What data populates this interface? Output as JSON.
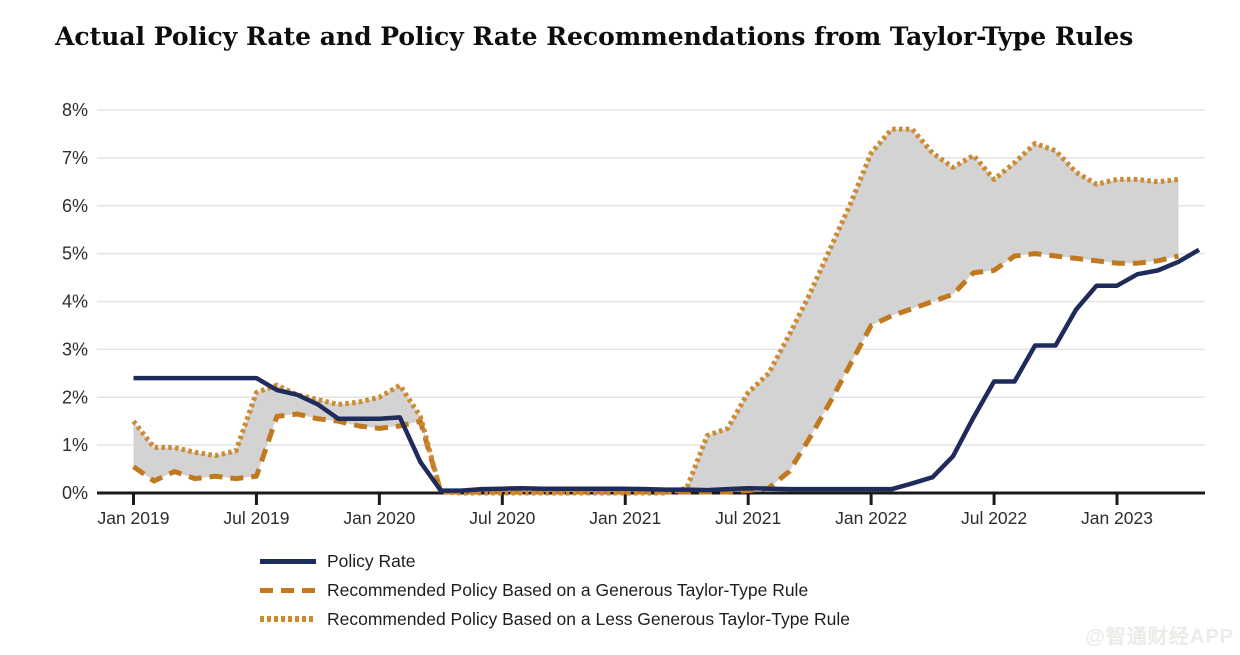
{
  "page": {
    "watermark": "@智通财经APP"
  },
  "chart_data": {
    "type": "line",
    "title": "Actual Policy Rate and Policy Rate Recommendations from Taylor-Type Rules",
    "x_unit": "month",
    "months": [
      "Jan 2019",
      "Feb 2019",
      "Mar 2019",
      "Apr 2019",
      "May 2019",
      "Jun 2019",
      "Jul 2019",
      "Aug 2019",
      "Sep 2019",
      "Oct 2019",
      "Nov 2019",
      "Dec 2019",
      "Jan 2020",
      "Feb 2020",
      "Mar 2020",
      "Apr 2020",
      "May 2020",
      "Jun 2020",
      "Jul 2020",
      "Aug 2020",
      "Sep 2020",
      "Oct 2020",
      "Nov 2020",
      "Dec 2020",
      "Jan 2021",
      "Feb 2021",
      "Mar 2021",
      "Apr 2021",
      "May 2021",
      "Jun 2021",
      "Jul 2021",
      "Aug 2021",
      "Sep 2021",
      "Oct 2021",
      "Nov 2021",
      "Dec 2021",
      "Jan 2022",
      "Feb 2022",
      "Mar 2022",
      "Apr 2022",
      "May 2022",
      "Jun 2022",
      "Jul 2022",
      "Aug 2022",
      "Sep 2022",
      "Oct 2022",
      "Nov 2022",
      "Dec 2022",
      "Jan 2023",
      "Feb 2023",
      "Mar 2023",
      "Apr 2023",
      "May 2023"
    ],
    "x_tick_labels": [
      "Jan 2019",
      "Jul 2019",
      "Jan 2020",
      "Jul 2020",
      "Jan 2021",
      "Jul 2021",
      "Jan 2022",
      "Jul 2022",
      "Jan 2023"
    ],
    "x_tick_indices": [
      0,
      6,
      12,
      18,
      24,
      30,
      36,
      42,
      48
    ],
    "y_tick_labels": [
      "0%",
      "1%",
      "2%",
      "3%",
      "4%",
      "5%",
      "6%",
      "7%",
      "8%"
    ],
    "ylim": [
      0,
      8
    ],
    "grid": "horizontal",
    "legend_position": "bottom-left",
    "band": {
      "between_series": [
        1,
        2
      ],
      "color": "#d3d3d3"
    },
    "series": [
      {
        "name": "Policy Rate",
        "style": "solid",
        "color": "#1f2b5b",
        "values": [
          2.4,
          2.4,
          2.4,
          2.4,
          2.4,
          2.4,
          2.4,
          2.15,
          2.05,
          1.85,
          1.55,
          1.55,
          1.55,
          1.58,
          0.65,
          0.05,
          0.05,
          0.08,
          0.09,
          0.1,
          0.09,
          0.09,
          0.09,
          0.09,
          0.09,
          0.08,
          0.07,
          0.07,
          0.06,
          0.08,
          0.1,
          0.09,
          0.08,
          0.08,
          0.08,
          0.08,
          0.08,
          0.08,
          0.2,
          0.33,
          0.77,
          1.58,
          2.33,
          2.33,
          3.08,
          3.08,
          3.83,
          4.33,
          4.33,
          4.57,
          4.65,
          4.83,
          5.08
        ]
      },
      {
        "name": "Recommended Policy Based on a Generous Taylor-Type Rule",
        "style": "dashed",
        "color": "#c0791f",
        "values": [
          0.55,
          0.25,
          0.45,
          0.3,
          0.35,
          0.3,
          0.35,
          1.6,
          1.65,
          1.55,
          1.5,
          1.4,
          1.35,
          1.4,
          1.5,
          0.02,
          0.02,
          0.02,
          0.02,
          0.02,
          0.02,
          0.02,
          0.02,
          0.02,
          0.02,
          0.02,
          0.02,
          0.02,
          0.02,
          0.02,
          0.05,
          0.1,
          0.45,
          1.15,
          1.9,
          2.7,
          3.5,
          3.7,
          3.85,
          4.0,
          4.15,
          4.6,
          4.65,
          4.95,
          5.0,
          4.95,
          4.9,
          4.85,
          4.8,
          4.8,
          4.85,
          4.95,
          null
        ]
      },
      {
        "name": "Recommended Policy Based on a Less Generous Taylor-Type Rule",
        "style": "dotted",
        "color": "#cd8a33",
        "values": [
          1.5,
          0.95,
          0.95,
          0.85,
          0.78,
          0.88,
          2.1,
          2.25,
          2.05,
          1.95,
          1.85,
          1.9,
          2.0,
          2.25,
          1.6,
          0.02,
          0.0,
          0.0,
          0.0,
          0.0,
          0.0,
          0.0,
          0.0,
          0.0,
          0.0,
          0.0,
          0.0,
          0.1,
          1.2,
          1.35,
          2.1,
          2.5,
          3.3,
          4.15,
          5.1,
          6.05,
          7.1,
          7.6,
          7.6,
          7.1,
          6.8,
          7.05,
          6.55,
          6.9,
          7.3,
          7.15,
          6.7,
          6.45,
          6.55,
          6.55,
          6.5,
          6.55,
          null
        ]
      }
    ]
  }
}
